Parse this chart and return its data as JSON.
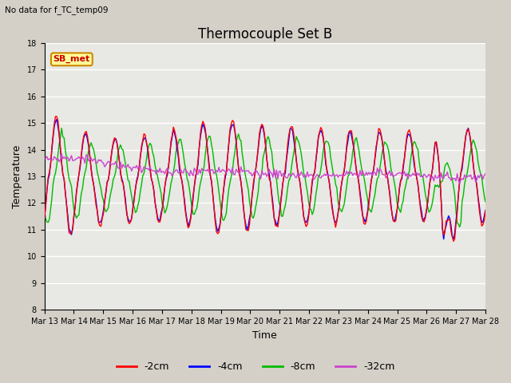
{
  "title": "Thermocouple Set B",
  "subtitle": "No data for f_TC_temp09",
  "xlabel": "Time",
  "ylabel": "Temperature",
  "ylim": [
    8.0,
    18.0
  ],
  "yticks": [
    8.0,
    9.0,
    10.0,
    11.0,
    12.0,
    13.0,
    14.0,
    15.0,
    16.0,
    17.0,
    18.0
  ],
  "xtick_labels": [
    "Mar 13",
    "Mar 14",
    "Mar 15",
    "Mar 16",
    "Mar 17",
    "Mar 18",
    "Mar 19",
    "Mar 20",
    "Mar 21",
    "Mar 22",
    "Mar 23",
    "Mar 24",
    "Mar 25",
    "Mar 26",
    "Mar 27",
    "Mar 28"
  ],
  "legend_labels": [
    "-2cm",
    "-4cm",
    "-8cm",
    "-32cm"
  ],
  "line_colors": [
    "#ff0000",
    "#0000ff",
    "#00bb00",
    "#cc44cc"
  ],
  "background_color": "#e8e8e8",
  "grid_color": "#ffffff",
  "title_fontsize": 12,
  "axis_fontsize": 9,
  "tick_fontsize": 7,
  "legend_fontsize": 9
}
